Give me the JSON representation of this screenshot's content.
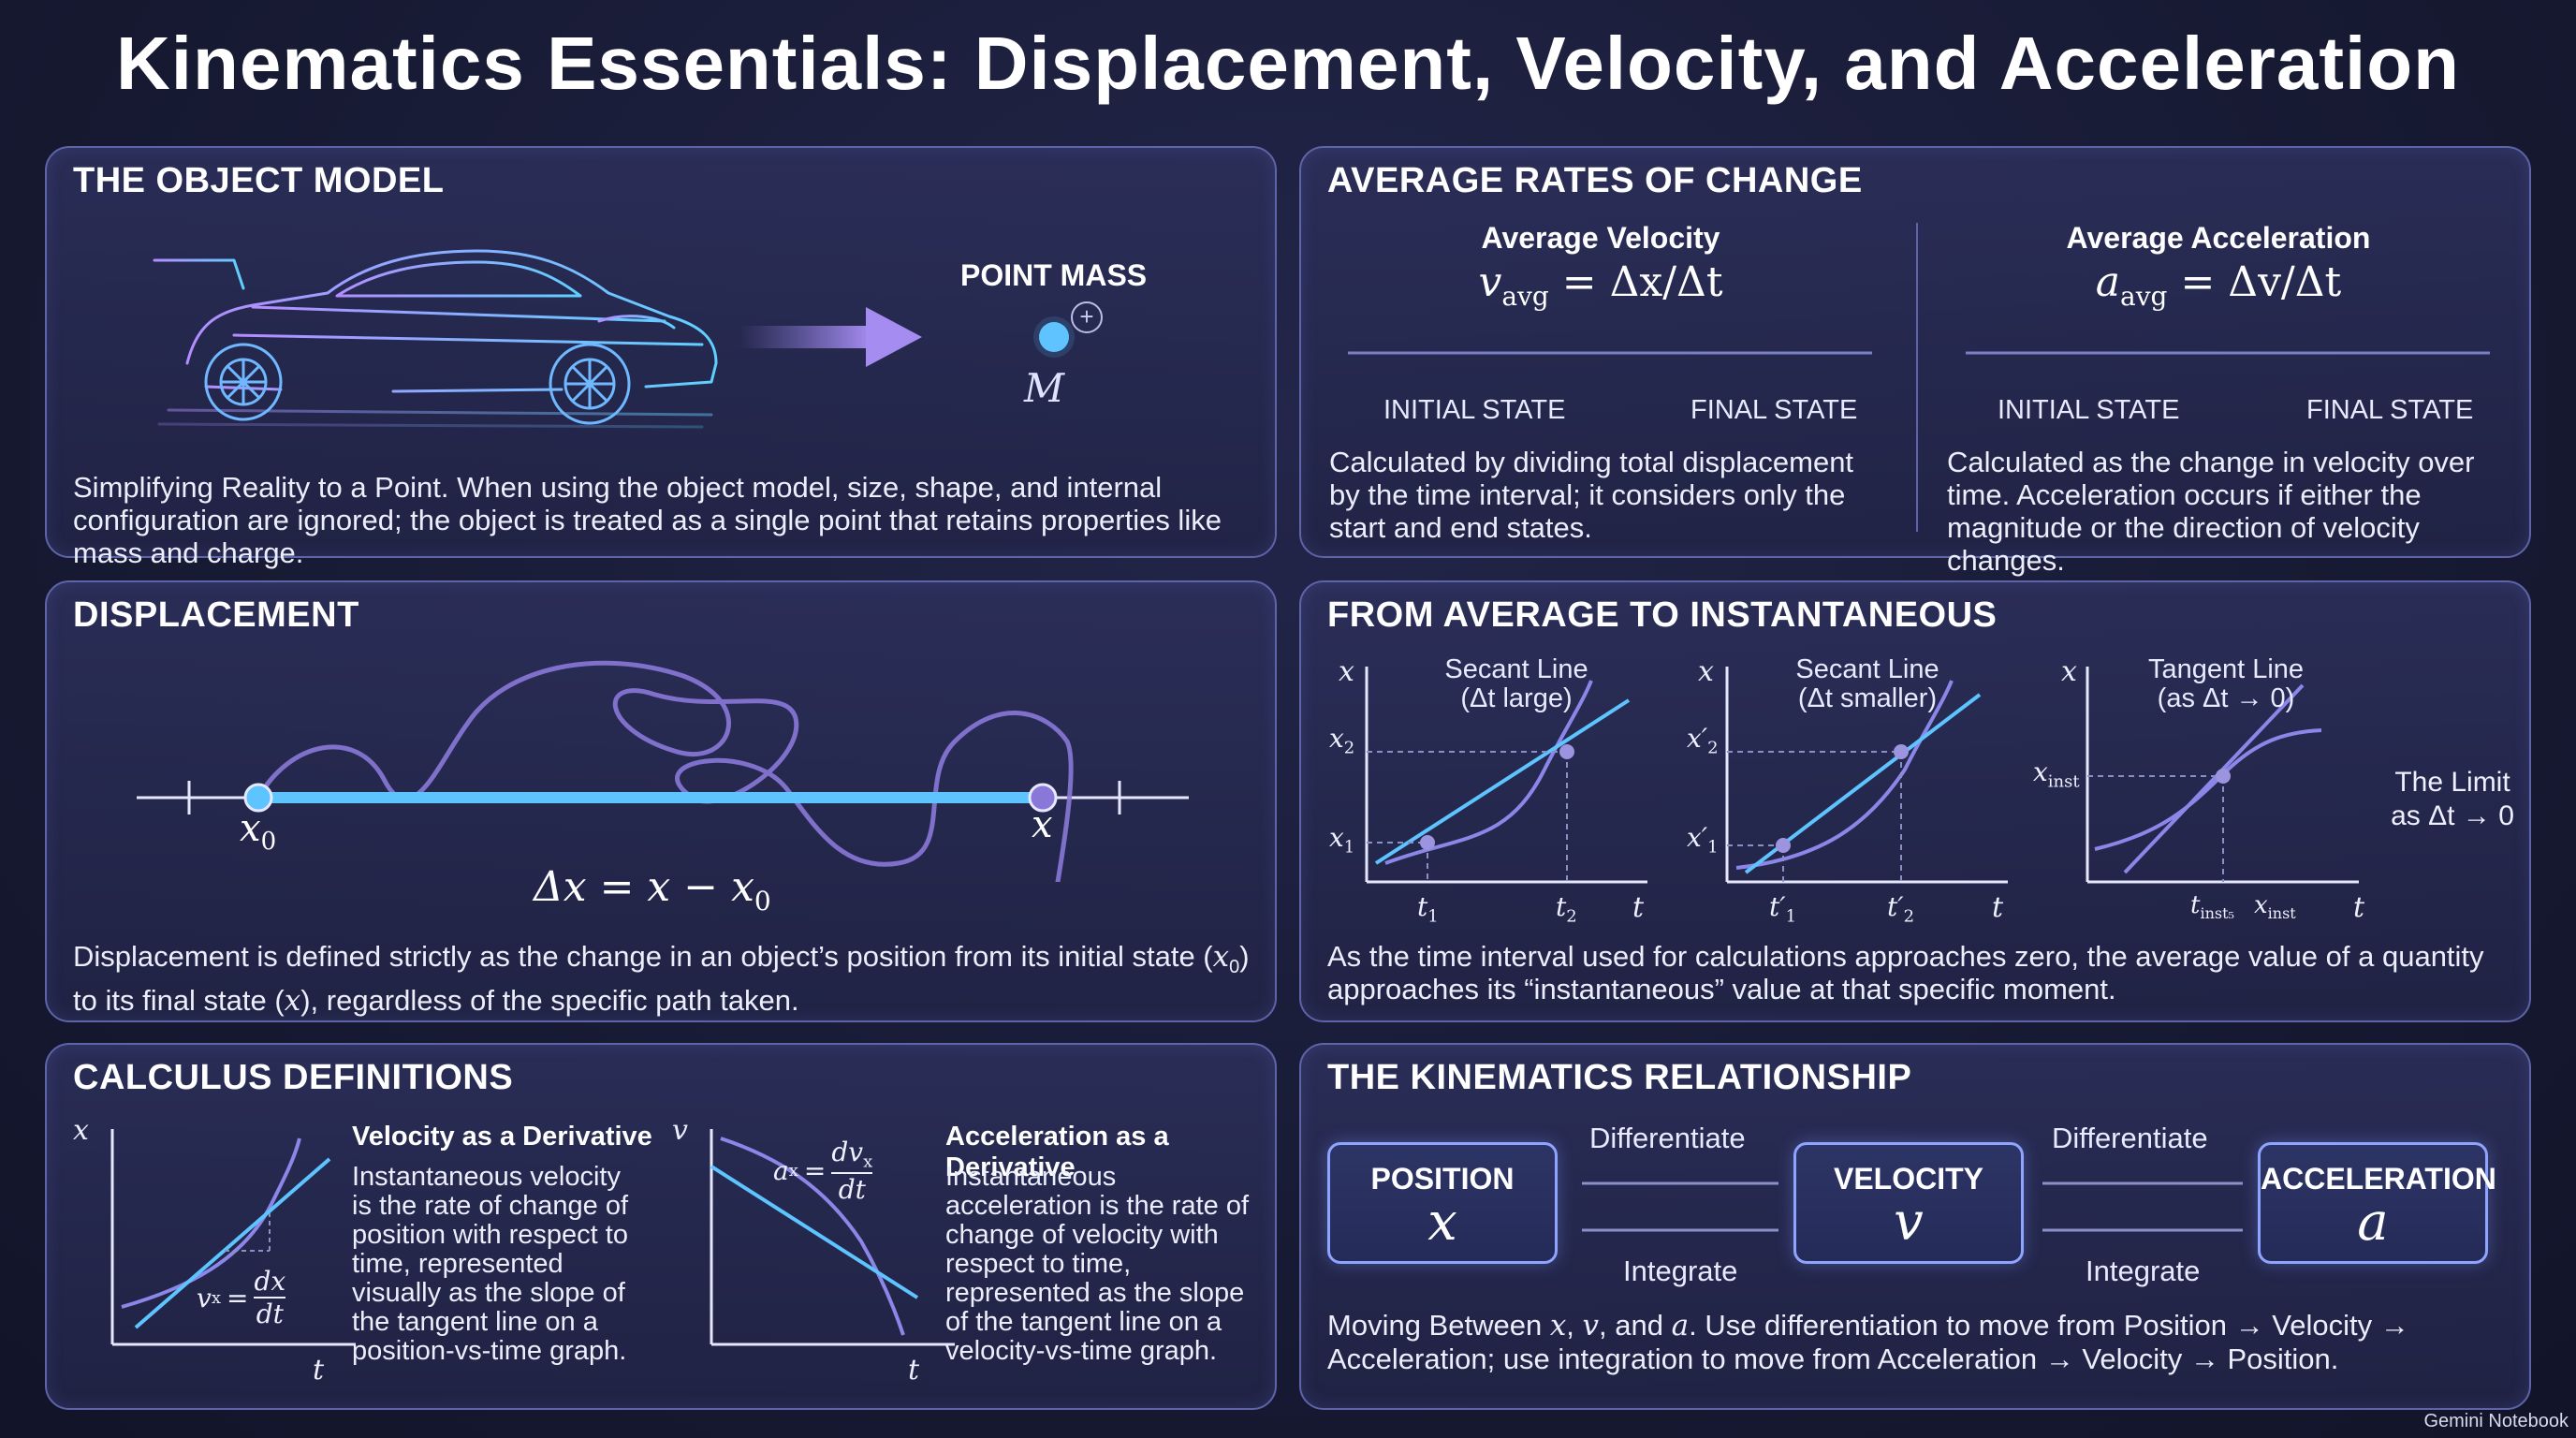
{
  "title": "Kinematics Essentials: Displacement, Velocity, and Acceleration",
  "colors": {
    "accent_cyan": "#5ec4ff",
    "accent_purple": "#8c7ee0",
    "panel_border": "#5e64a8",
    "background": "#171a33"
  },
  "object_model": {
    "heading": "THE OBJECT MODEL",
    "point_mass_label": "POINT MASS",
    "mass_symbol": "M",
    "plus_symbol": "+",
    "description": "Simplifying Reality to a Point. When using the object model, size, shape, and internal configuration are ignored; the object is treated as a single point that retains properties like mass and charge.",
    "icons": [
      "car-wireframe-icon",
      "arrow-right-icon",
      "point-mass-icon"
    ]
  },
  "average_rates": {
    "heading": "AVERAGE RATES OF CHANGE",
    "velocity": {
      "title": "Average Velocity",
      "formula_lhs": "v",
      "formula_sub": "avg",
      "formula_rhs": "= Δx/Δt",
      "initial": "INITIAL STATE",
      "final": "FINAL STATE",
      "description": "Calculated by dividing total displacement by the time interval; it considers only the start and end states."
    },
    "acceleration": {
      "title": "Average Acceleration",
      "formula_lhs": "a",
      "formula_sub": "avg",
      "formula_rhs": "= Δv/Δt",
      "initial": "INITIAL STATE",
      "final": "FINAL STATE",
      "description": "Calculated as the change in velocity over time. Acceleration occurs if either the magnitude or the direction of velocity changes."
    }
  },
  "displacement": {
    "heading": "DISPLACEMENT",
    "start_label": "x",
    "start_sub": "0",
    "end_label": "x",
    "equation": "Δx = x − x",
    "equation_sub": "0",
    "description_1": "Displacement is defined strictly as the change in an object’s position from its initial state (",
    "description_sym1": "x",
    "description_sym1_sub": "0",
    "description_2": ") to its final state (",
    "description_sym2": "x",
    "description_3": "), regardless of the specific path taken."
  },
  "instantaneous": {
    "heading": "FROM AVERAGE TO INSTANTANEOUS",
    "graph1": {
      "title_1": "Secant Line",
      "title_2": "(Δt large)",
      "y_axis": "x",
      "x_axis": "t",
      "y_tick_1": "x",
      "y_tick_1_sub": "1",
      "y_tick_2": "x",
      "y_tick_2_sub": "2",
      "x_tick_1": "t",
      "x_tick_1_sub": "1",
      "x_tick_2": "t",
      "x_tick_2_sub": "2"
    },
    "graph2": {
      "title_1": "Secant Line",
      "title_2": "(Δt smaller)",
      "y_axis": "x",
      "x_axis": "t",
      "y_tick_1": "x′",
      "y_tick_1_sub": "1",
      "y_tick_2": "x′",
      "y_tick_2_sub": "2",
      "x_tick_1": "t′",
      "x_tick_1_sub": "1",
      "x_tick_2": "t′",
      "x_tick_2_sub": "2"
    },
    "graph3": {
      "title_1": "Tangent Line",
      "title_2": "(as Δt → 0)",
      "y_axis": "x",
      "x_axis": "t",
      "y_tick": "x",
      "y_tick_sub": "inst",
      "x_tick_1": "t",
      "x_tick_1_sub": "inst₅",
      "x_tick_2": "x",
      "x_tick_2_sub": "inst"
    },
    "limit_1": "The Limit",
    "limit_2": "as Δt → 0",
    "description": "As the time interval used for calculations approaches zero, the average value of a quantity approaches its “instantaneous” value at that specific moment."
  },
  "calculus": {
    "heading": "CALCULUS DEFINITIONS",
    "velocity": {
      "y_axis": "x",
      "x_axis": "t",
      "eq_lhs": "v",
      "eq_sub": "x",
      "eq_num": "dx",
      "eq_den": "dt",
      "title": "Velocity as a Derivative",
      "description": "Instantaneous velocity is the rate of change of position with respect to time, represented visually as the slope of the tangent line on a position-vs-time graph."
    },
    "acceleration": {
      "y_axis": "v",
      "x_axis": "t",
      "eq_lhs": "a",
      "eq_sub": "x",
      "eq_num": "dv",
      "eq_num_sub": "x",
      "eq_den": "dt",
      "title": "Acceleration as a Derivative",
      "description": "Instantaneous acceleration is the rate of change of velocity with respect to time, represented as the slope of the tangent line on a velocity-vs-time graph."
    }
  },
  "relationship": {
    "heading": "THE KINEMATICS RELATIONSHIP",
    "boxes": [
      {
        "label": "POSITION",
        "symbol": "x"
      },
      {
        "label": "VELOCITY",
        "symbol": "v"
      },
      {
        "label": "ACCELERATION",
        "symbol": "a"
      }
    ],
    "differentiate": "Differentiate",
    "integrate": "Integrate",
    "description_1": "Moving Between ",
    "sym_x": "x",
    "comma_1": ", ",
    "sym_v": "v",
    "and_text": ", and ",
    "sym_a": "a",
    "description_2": ". Use differentiation to move from Position → Velocity → Acceleration; use integration to move from Acceleration → Velocity → Position."
  },
  "footer": "Gemini Notebook"
}
